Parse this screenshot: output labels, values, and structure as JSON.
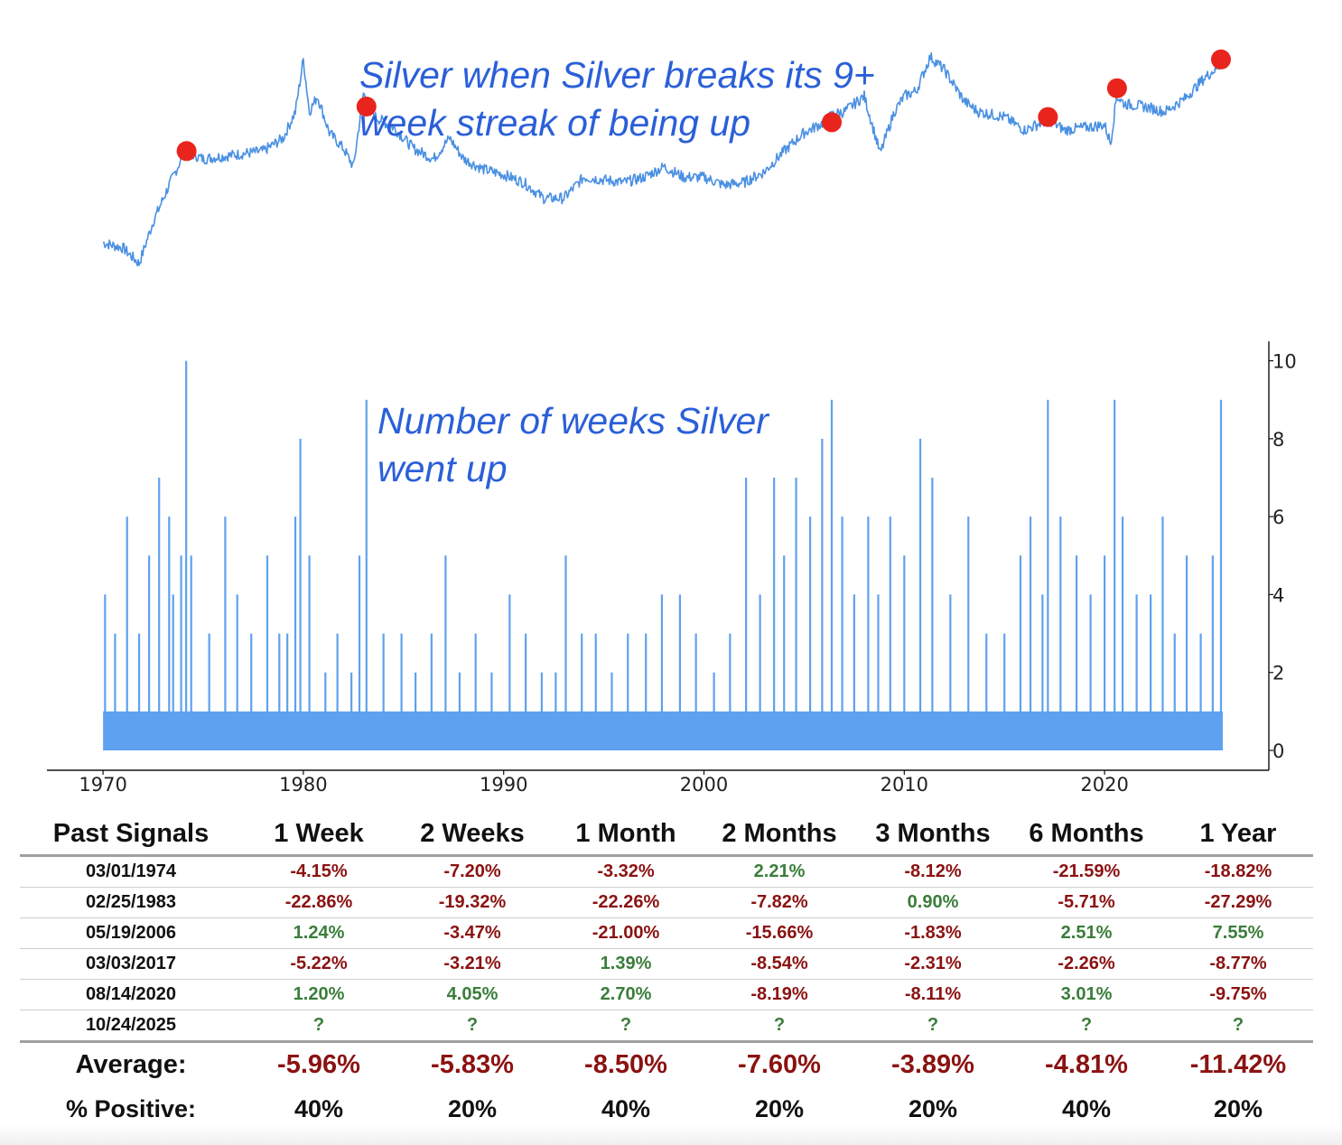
{
  "colors": {
    "line": "#4a90e2",
    "bar": "#5ea1f0",
    "marker": "#e8241c",
    "annotation": "#2a5fd8",
    "negative": "#8b1212",
    "positive": "#3a7d3a"
  },
  "chart_data": [
    {
      "type": "line",
      "title": "Silver when Silver breaks its 9+ week streak of being up",
      "annotation_lines": [
        "Silver when Silver breaks its 9+",
        "week streak of being up"
      ],
      "x_unit": "year",
      "xlim": [
        1970,
        2026
      ],
      "y_unit": "relative price level (log scale, unlabeled)",
      "ylim": [
        0,
        100
      ],
      "x": [
        1970.0,
        1971.0,
        1971.8,
        1972.5,
        1973.3,
        1974.1,
        1975.0,
        1976.0,
        1977.0,
        1978.0,
        1979.0,
        1979.6,
        1980.0,
        1980.3,
        1980.7,
        1981.3,
        1982.0,
        1982.5,
        1983.0,
        1983.6,
        1984.5,
        1985.5,
        1986.5,
        1987.3,
        1988.0,
        1989.0,
        1990.0,
        1991.0,
        1992.0,
        1993.0,
        1994.0,
        1995.0,
        1996.0,
        1997.0,
        1998.0,
        1999.0,
        2000.0,
        2001.0,
        2002.0,
        2003.0,
        2004.0,
        2005.0,
        2006.0,
        2006.4,
        2007.0,
        2008.0,
        2008.8,
        2009.5,
        2010.0,
        2010.6,
        2011.3,
        2012.0,
        2013.0,
        2013.7,
        2015.0,
        2016.0,
        2017.2,
        2018.0,
        2019.0,
        2020.0,
        2020.3,
        2020.6,
        2021.0,
        2022.0,
        2023.0,
        2024.0,
        2025.0,
        2025.8
      ],
      "y": [
        28,
        26,
        20,
        36,
        50,
        63,
        60,
        61,
        62,
        63,
        68,
        78,
        98,
        78,
        84,
        70,
        64,
        57,
        85,
        76,
        72,
        64,
        60,
        68,
        60,
        56,
        54,
        51,
        45,
        45,
        53,
        52,
        51,
        53,
        57,
        53,
        53,
        50,
        51,
        55,
        63,
        70,
        74,
        77,
        78,
        84,
        62,
        78,
        84,
        86,
        99,
        94,
        82,
        78,
        76,
        71,
        75,
        71,
        72,
        73,
        66,
        84,
        81,
        80,
        78,
        83,
        91,
        96
      ],
      "markers": [
        {
          "x": 1974.17,
          "y": 63
        },
        {
          "x": 1983.15,
          "y": 80
        },
        {
          "x": 2006.38,
          "y": 74
        },
        {
          "x": 2017.17,
          "y": 76
        },
        {
          "x": 2020.62,
          "y": 87
        },
        {
          "x": 2025.81,
          "y": 98
        }
      ]
    },
    {
      "type": "bar",
      "title": "Number of weeks Silver went up",
      "annotation_lines": [
        "Number of weeks Silver",
        "went up"
      ],
      "x_unit": "year",
      "xlim": [
        1967.2,
        2028.2
      ],
      "ylim": [
        0,
        10.5
      ],
      "xticks": [
        1970,
        1980,
        1990,
        2000,
        2010,
        2020
      ],
      "yticks": [
        0,
        2,
        4,
        6,
        8,
        10
      ],
      "x": [
        1970.1,
        1970.6,
        1971.2,
        1971.8,
        1972.3,
        1972.8,
        1973.3,
        1973.5,
        1973.9,
        1974.15,
        1974.4,
        1975.3,
        1976.1,
        1976.7,
        1977.4,
        1978.2,
        1978.8,
        1979.2,
        1979.6,
        1979.85,
        1980.3,
        1981.1,
        1981.7,
        1982.4,
        1982.8,
        1983.15,
        1984.0,
        1984.9,
        1985.6,
        1986.4,
        1987.1,
        1987.8,
        1988.6,
        1989.4,
        1990.3,
        1991.1,
        1991.9,
        1992.6,
        1993.1,
        1993.9,
        1994.6,
        1995.4,
        1996.2,
        1997.1,
        1997.9,
        1998.8,
        1999.6,
        2000.5,
        2001.3,
        2002.1,
        2002.8,
        2003.5,
        2004.0,
        2004.6,
        2005.3,
        2005.9,
        2006.38,
        2006.9,
        2007.5,
        2008.2,
        2008.7,
        2009.3,
        2010.0,
        2010.8,
        2011.4,
        2012.3,
        2013.2,
        2014.1,
        2015.0,
        2015.8,
        2016.3,
        2016.9,
        2017.17,
        2017.8,
        2018.6,
        2019.3,
        2020.0,
        2020.5,
        2020.9,
        2021.6,
        2022.3,
        2022.9,
        2023.5,
        2024.1,
        2024.8,
        2025.4,
        2025.81
      ],
      "values": [
        4,
        3,
        6,
        3,
        5,
        7,
        6,
        4,
        5,
        10,
        5,
        3,
        6,
        4,
        3,
        5,
        3,
        3,
        6,
        8,
        5,
        2,
        3,
        2,
        5,
        9,
        3,
        3,
        2,
        3,
        5,
        2,
        3,
        2,
        4,
        3,
        2,
        2,
        5,
        3,
        3,
        2,
        3,
        3,
        4,
        4,
        3,
        2,
        3,
        7,
        4,
        7,
        5,
        7,
        6,
        8,
        9,
        6,
        4,
        6,
        4,
        6,
        5,
        8,
        7,
        4,
        6,
        3,
        3,
        5,
        6,
        4,
        9,
        6,
        5,
        4,
        5,
        9,
        6,
        4,
        4,
        6,
        3,
        5,
        3,
        5,
        9
      ],
      "baseline_band": 1
    }
  ],
  "table": {
    "headers": [
      "Past Signals",
      "1 Week",
      "2 Weeks",
      "1 Month",
      "2 Months",
      "3 Months",
      "6 Months",
      "1 Year"
    ],
    "rows": [
      {
        "date": "03/01/1974",
        "cells": [
          {
            "v": "-4.15%",
            "s": "neg"
          },
          {
            "v": "-7.20%",
            "s": "neg"
          },
          {
            "v": "-3.32%",
            "s": "neg"
          },
          {
            "v": "2.21%",
            "s": "pos"
          },
          {
            "v": "-8.12%",
            "s": "neg"
          },
          {
            "v": "-21.59%",
            "s": "neg"
          },
          {
            "v": "-18.82%",
            "s": "neg"
          }
        ]
      },
      {
        "date": "02/25/1983",
        "cells": [
          {
            "v": "-22.86%",
            "s": "neg"
          },
          {
            "v": "-19.32%",
            "s": "neg"
          },
          {
            "v": "-22.26%",
            "s": "neg"
          },
          {
            "v": "-7.82%",
            "s": "neg"
          },
          {
            "v": "0.90%",
            "s": "pos"
          },
          {
            "v": "-5.71%",
            "s": "neg"
          },
          {
            "v": "-27.29%",
            "s": "neg"
          }
        ]
      },
      {
        "date": "05/19/2006",
        "cells": [
          {
            "v": "1.24%",
            "s": "pos"
          },
          {
            "v": "-3.47%",
            "s": "neg"
          },
          {
            "v": "-21.00%",
            "s": "neg"
          },
          {
            "v": "-15.66%",
            "s": "neg"
          },
          {
            "v": "-1.83%",
            "s": "neg"
          },
          {
            "v": "2.51%",
            "s": "pos"
          },
          {
            "v": "7.55%",
            "s": "pos"
          }
        ]
      },
      {
        "date": "03/03/2017",
        "cells": [
          {
            "v": "-5.22%",
            "s": "neg"
          },
          {
            "v": "-3.21%",
            "s": "neg"
          },
          {
            "v": "1.39%",
            "s": "pos"
          },
          {
            "v": "-8.54%",
            "s": "neg"
          },
          {
            "v": "-2.31%",
            "s": "neg"
          },
          {
            "v": "-2.26%",
            "s": "neg"
          },
          {
            "v": "-8.77%",
            "s": "neg"
          }
        ]
      },
      {
        "date": "08/14/2020",
        "cells": [
          {
            "v": "1.20%",
            "s": "pos"
          },
          {
            "v": "4.05%",
            "s": "pos"
          },
          {
            "v": "2.70%",
            "s": "pos"
          },
          {
            "v": "-8.19%",
            "s": "neg"
          },
          {
            "v": "-8.11%",
            "s": "neg"
          },
          {
            "v": "3.01%",
            "s": "pos"
          },
          {
            "v": "-9.75%",
            "s": "neg"
          }
        ]
      },
      {
        "date": "10/24/2025",
        "cells": [
          {
            "v": "?",
            "s": "q"
          },
          {
            "v": "?",
            "s": "q"
          },
          {
            "v": "?",
            "s": "q"
          },
          {
            "v": "?",
            "s": "q"
          },
          {
            "v": "?",
            "s": "q"
          },
          {
            "v": "?",
            "s": "q"
          },
          {
            "v": "?",
            "s": "q"
          }
        ]
      }
    ],
    "average": {
      "label": "Average:",
      "values": [
        "-5.96%",
        "-5.83%",
        "-8.50%",
        "-7.60%",
        "-3.89%",
        "-4.81%",
        "-11.42%"
      ]
    },
    "percent_positive": {
      "label": "% Positive:",
      "values": [
        "40%",
        "20%",
        "40%",
        "20%",
        "20%",
        "40%",
        "20%"
      ]
    }
  }
}
